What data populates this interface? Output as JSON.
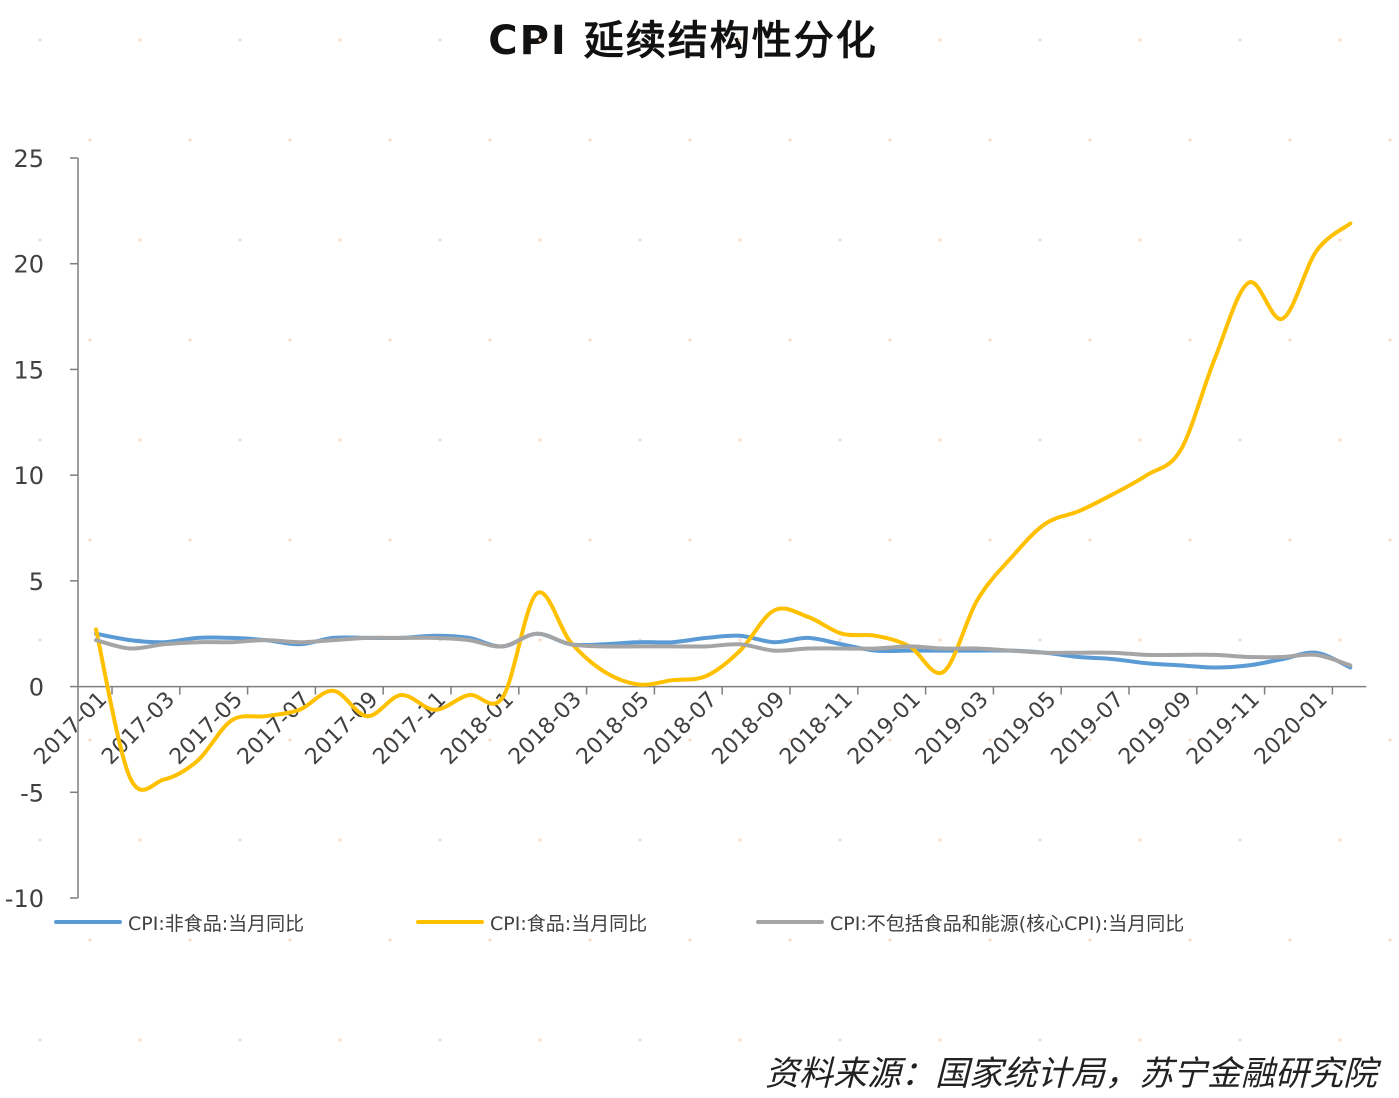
{
  "chart_data": {
    "type": "line",
    "title": "CPI 延续结构性分化",
    "categories": [
      "2017-01",
      "2017-02",
      "2017-03",
      "2017-04",
      "2017-05",
      "2017-06",
      "2017-07",
      "2017-08",
      "2017-09",
      "2017-10",
      "2017-11",
      "2017-12",
      "2018-01",
      "2018-02",
      "2018-03",
      "2018-04",
      "2018-05",
      "2018-06",
      "2018-07",
      "2018-08",
      "2018-09",
      "2018-10",
      "2018-11",
      "2018-12",
      "2019-01",
      "2019-02",
      "2019-03",
      "2019-04",
      "2019-05",
      "2019-06",
      "2019-07",
      "2019-08",
      "2019-09",
      "2019-10",
      "2019-11",
      "2019-12",
      "2020-01",
      "2020-02"
    ],
    "x_tick_labels": [
      "2017-01",
      "2017-03",
      "2017-05",
      "2017-07",
      "2017-09",
      "2017-11",
      "2018-01",
      "2018-03",
      "2018-05",
      "2018-07",
      "2018-09",
      "2018-11",
      "2019-01",
      "2019-03",
      "2019-05",
      "2019-07",
      "2019-09",
      "2019-11",
      "2020-01"
    ],
    "y_ticks": [
      25,
      20,
      15,
      10,
      5,
      0,
      -5,
      -10
    ],
    "ylim": [
      -10,
      25
    ],
    "grid": false,
    "legend_position": "bottom",
    "series": [
      {
        "name": "CPI:非食品:当月同比",
        "color": "#5B9BD5",
        "values": [
          2.5,
          2.2,
          2.1,
          2.3,
          2.3,
          2.2,
          2.0,
          2.3,
          2.3,
          2.3,
          2.4,
          2.3,
          1.9,
          2.5,
          2.0,
          2.0,
          2.1,
          2.1,
          2.3,
          2.4,
          2.1,
          2.3,
          2.0,
          1.7,
          1.7,
          1.7,
          1.7,
          1.7,
          1.6,
          1.4,
          1.3,
          1.1,
          1.0,
          0.9,
          1.0,
          1.3,
          1.6,
          0.9
        ]
      },
      {
        "name": "CPI:食品:当月同比",
        "color": "#FFC000",
        "values": [
          2.7,
          -4.3,
          -4.4,
          -3.5,
          -1.6,
          -1.4,
          -1.1,
          -0.2,
          -1.4,
          -0.4,
          -1.1,
          -0.4,
          -0.5,
          4.4,
          2.1,
          0.7,
          0.1,
          0.3,
          0.5,
          1.7,
          3.6,
          3.3,
          2.5,
          2.4,
          1.9,
          0.7,
          4.1,
          6.1,
          7.7,
          8.3,
          9.1,
          10.0,
          11.2,
          15.5,
          19.1,
          17.4,
          20.6,
          21.9
        ]
      },
      {
        "name": "CPI:不包括食品和能源(核心CPI):当月同比",
        "color": "#A5A5A5",
        "values": [
          2.2,
          1.8,
          2.0,
          2.1,
          2.1,
          2.2,
          2.1,
          2.2,
          2.3,
          2.3,
          2.3,
          2.2,
          1.9,
          2.5,
          2.0,
          1.9,
          1.9,
          1.9,
          1.9,
          2.0,
          1.7,
          1.8,
          1.8,
          1.8,
          1.9,
          1.8,
          1.8,
          1.7,
          1.6,
          1.6,
          1.6,
          1.5,
          1.5,
          1.5,
          1.4,
          1.4,
          1.5,
          1.0
        ]
      }
    ]
  },
  "source_text": "资料来源：国家统计局，苏宁金融研究院"
}
